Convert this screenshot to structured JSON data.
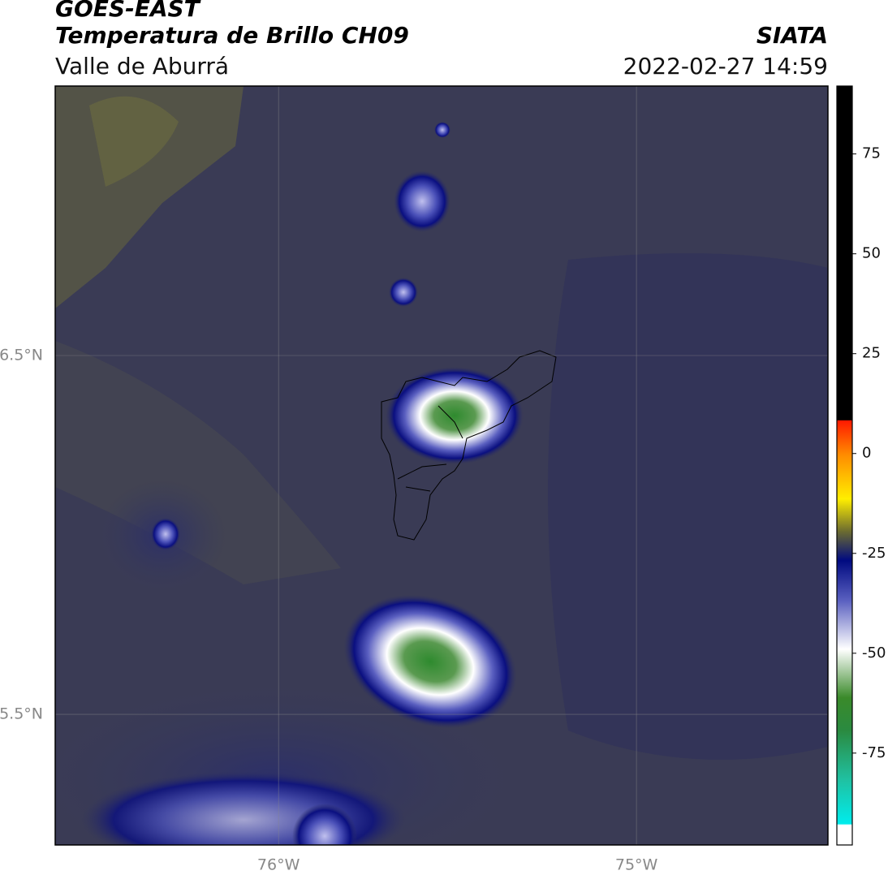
{
  "header": {
    "title": "GOES-EAST",
    "subtitle": "Temperatura de Brillo CH09",
    "location": "Valle de Aburrá",
    "agency": "SIATA",
    "datetime": "2022-02-27 14:59"
  },
  "map": {
    "lon_range": [
      -76.624,
      -74.465
    ],
    "lat_range": [
      5.136,
      7.251
    ],
    "lon_ticks": [
      {
        "value": -76,
        "label": "76°W"
      },
      {
        "value": -75,
        "label": "75°W"
      }
    ],
    "lat_ticks": [
      {
        "value": 6.5,
        "label": "6.5°N"
      },
      {
        "value": 5.5,
        "label": "5.5°N"
      }
    ]
  },
  "colorbar": {
    "range": [
      -98,
      92
    ],
    "ticks": [
      75,
      50,
      25,
      0,
      -25,
      -50,
      -75
    ]
  }
}
